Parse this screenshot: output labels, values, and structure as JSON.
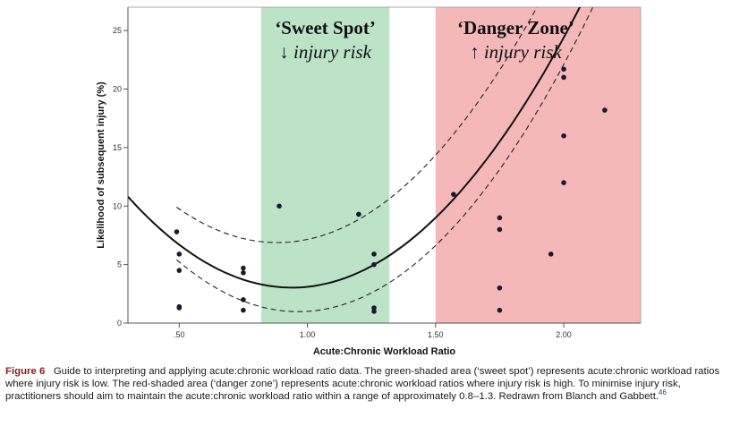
{
  "chart_data": {
    "type": "scatter",
    "xlabel": "Acute:Chronic Workload Ratio",
    "ylabel": "Likelihood of subsequent injury (%)",
    "xlim": [
      0.3,
      2.3
    ],
    "ylim": [
      0,
      27
    ],
    "x_ticks": [
      {
        "value": 0.5,
        "label": ".50"
      },
      {
        "value": 1.0,
        "label": "1.00"
      },
      {
        "value": 1.5,
        "label": "1.50"
      },
      {
        "value": 2.0,
        "label": "2.00"
      }
    ],
    "y_ticks": [
      {
        "value": 0,
        "label": "0"
      },
      {
        "value": 5,
        "label": "5"
      },
      {
        "value": 10,
        "label": "10"
      },
      {
        "value": 15,
        "label": "15"
      },
      {
        "value": 20,
        "label": "20"
      },
      {
        "value": 25,
        "label": "25"
      }
    ],
    "zones": [
      {
        "name": "sweet-spot",
        "title": "‘Sweet Spot’",
        "subtitle": "↓ injury risk",
        "x_start": 0.82,
        "x_end": 1.32,
        "color": "#bde3c6"
      },
      {
        "name": "danger-zone",
        "title": "‘Danger Zone’",
        "subtitle": "↑ injury risk",
        "x_start": 1.5,
        "x_end": 2.3,
        "color": "#f4b8b8"
      }
    ],
    "points": [
      [
        0.49,
        7.8
      ],
      [
        0.5,
        5.9
      ],
      [
        0.5,
        4.5
      ],
      [
        0.5,
        1.4
      ],
      [
        0.5,
        1.3
      ],
      [
        0.75,
        4.7
      ],
      [
        0.75,
        4.3
      ],
      [
        0.75,
        2.0
      ],
      [
        0.75,
        1.1
      ],
      [
        0.89,
        10.0
      ],
      [
        1.2,
        9.3
      ],
      [
        1.26,
        5.9
      ],
      [
        1.26,
        5.0
      ],
      [
        1.26,
        1.3
      ],
      [
        1.26,
        1.0
      ],
      [
        1.57,
        11.0
      ],
      [
        1.75,
        9.0
      ],
      [
        1.75,
        8.0
      ],
      [
        1.75,
        3.0
      ],
      [
        1.75,
        1.1
      ],
      [
        1.95,
        5.9
      ],
      [
        2.0,
        21.7
      ],
      [
        2.0,
        21.0
      ],
      [
        2.0,
        16.0
      ],
      [
        2.0,
        12.0
      ],
      [
        2.16,
        18.2
      ]
    ],
    "fit_curve": {
      "a": 19.0,
      "b": -35.7,
      "c": 19.8,
      "style": "solid",
      "color": "#111111"
    },
    "ci_upper": {
      "a": 19.6,
      "b": -34.6,
      "c": 22.15,
      "x_range": [
        0.49,
        2.16
      ],
      "style": "dashed"
    },
    "ci_lower": {
      "a": 19.7,
      "b": -38.0,
      "c": 19.3,
      "x_range": [
        0.49,
        2.16
      ],
      "style": "dashed"
    },
    "colors": {
      "points": "#1a1a2e",
      "curve": "#111111",
      "axis": "#555555"
    }
  },
  "caption": {
    "figure_label": "Figure 6",
    "text": "Guide to interpreting and applying acute:chronic workload ratio data. The green-shaded area (‘sweet spot’) represents acute:chronic workload ratios where injury risk is low. The red-shaded area (‘danger zone’) represents acute:chronic workload ratios where injury risk is high. To minimise injury risk, practitioners should aim to maintain the acute:chronic workload ratio within a range of approximately 0.8–1.3. Redrawn from Blanch and Gabbett.",
    "reference": "46"
  }
}
